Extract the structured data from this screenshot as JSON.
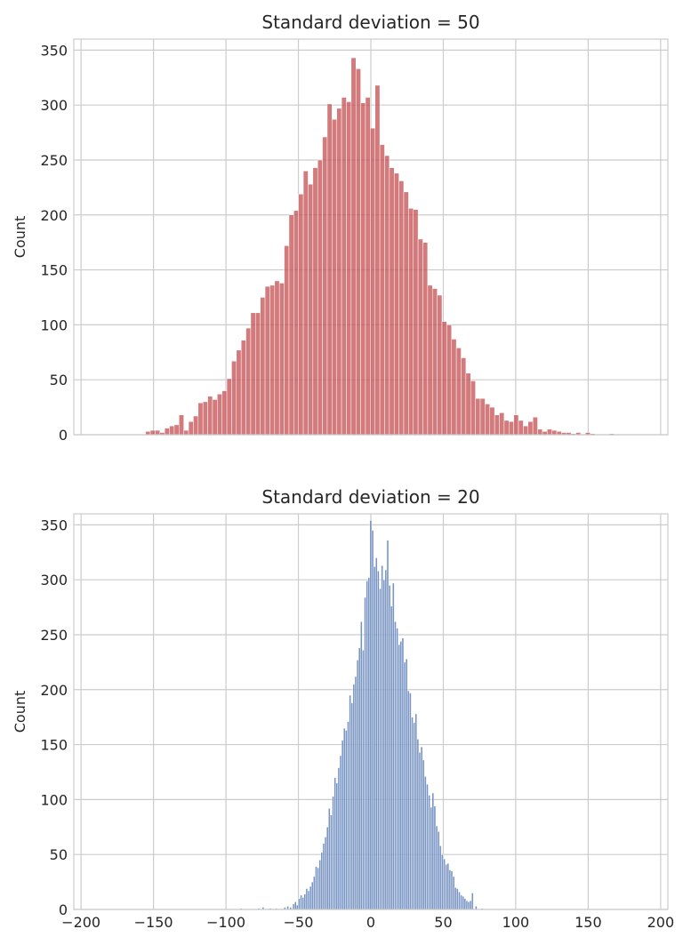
{
  "chart_data": [
    {
      "type": "bar",
      "histogram": true,
      "title": "Standard deviation = 50",
      "xlabel": "",
      "ylabel": "Count",
      "color": "#c44e52",
      "xlim": [
        -205,
        205
      ],
      "ylim": [
        0,
        360
      ],
      "xticks": [
        -200,
        -150,
        -100,
        -50,
        0,
        50,
        100,
        150,
        200
      ],
      "yticks": [
        0,
        50,
        100,
        150,
        200,
        250,
        300,
        350
      ],
      "show_x_tick_labels": false,
      "grid": true,
      "bin_width": 3.3,
      "bins": [
        [
          -155.5,
          3
        ],
        [
          -152.2,
          4
        ],
        [
          -148.9,
          4
        ],
        [
          -145.6,
          2
        ],
        [
          -142.3,
          6
        ],
        [
          -139.0,
          8
        ],
        [
          -135.7,
          9
        ],
        [
          -132.4,
          18
        ],
        [
          -129.1,
          4
        ],
        [
          -125.8,
          12
        ],
        [
          -122.5,
          17
        ],
        [
          -119.2,
          29
        ],
        [
          -115.9,
          30
        ],
        [
          -112.6,
          35
        ],
        [
          -109.3,
          32
        ],
        [
          -106.0,
          37
        ],
        [
          -102.7,
          40
        ],
        [
          -99.4,
          51
        ],
        [
          -96.1,
          67
        ],
        [
          -92.8,
          77
        ],
        [
          -89.5,
          86
        ],
        [
          -86.2,
          97
        ],
        [
          -82.9,
          111
        ],
        [
          -79.6,
          111
        ],
        [
          -76.3,
          125
        ],
        [
          -73.0,
          135
        ],
        [
          -69.7,
          136
        ],
        [
          -66.4,
          140
        ],
        [
          -63.1,
          138
        ],
        [
          -59.8,
          172
        ],
        [
          -56.5,
          200
        ],
        [
          -53.2,
          204
        ],
        [
          -49.9,
          219
        ],
        [
          -46.6,
          240
        ],
        [
          -43.3,
          228
        ],
        [
          -40.0,
          243
        ],
        [
          -36.7,
          250
        ],
        [
          -33.4,
          271
        ],
        [
          -30.1,
          301
        ],
        [
          -26.8,
          287
        ],
        [
          -23.5,
          297
        ],
        [
          -20.2,
          307
        ],
        [
          -16.9,
          303
        ],
        [
          -13.6,
          343
        ],
        [
          -10.3,
          333
        ],
        [
          -7.0,
          302
        ],
        [
          -3.7,
          307
        ],
        [
          -0.4,
          279
        ],
        [
          2.9,
          318
        ],
        [
          6.2,
          264
        ],
        [
          9.5,
          254
        ],
        [
          12.8,
          243
        ],
        [
          16.1,
          238
        ],
        [
          19.4,
          231
        ],
        [
          22.7,
          221
        ],
        [
          26.0,
          206
        ],
        [
          29.3,
          205
        ],
        [
          32.6,
          178
        ],
        [
          35.9,
          175
        ],
        [
          39.2,
          136
        ],
        [
          42.5,
          133
        ],
        [
          45.8,
          127
        ],
        [
          49.1,
          103
        ],
        [
          52.4,
          100
        ],
        [
          55.7,
          87
        ],
        [
          59.0,
          79
        ],
        [
          62.3,
          70
        ],
        [
          65.6,
          56
        ],
        [
          68.9,
          49
        ],
        [
          72.2,
          33
        ],
        [
          75.5,
          33
        ],
        [
          78.8,
          28
        ],
        [
          82.1,
          25
        ],
        [
          85.4,
          18
        ],
        [
          88.7,
          20
        ],
        [
          92.0,
          13
        ],
        [
          95.3,
          12
        ],
        [
          98.6,
          18
        ],
        [
          101.9,
          13
        ],
        [
          105.2,
          8
        ],
        [
          108.5,
          12
        ],
        [
          111.8,
          16
        ],
        [
          115.1,
          5
        ],
        [
          118.4,
          3
        ],
        [
          121.7,
          5
        ],
        [
          125.0,
          4
        ],
        [
          128.3,
          3
        ],
        [
          131.6,
          2
        ],
        [
          134.9,
          2
        ],
        [
          138.2,
          1
        ],
        [
          141.5,
          2
        ],
        [
          148.1,
          2
        ],
        [
          151.4,
          1
        ],
        [
          164.6,
          1
        ]
      ]
    },
    {
      "type": "bar",
      "histogram": true,
      "title": "Standard deviation = 20",
      "xlabel": "",
      "ylabel": "Count",
      "color": "#4c72b0",
      "xlim": [
        -205,
        205
      ],
      "ylim": [
        0,
        360
      ],
      "xticks": [
        -200,
        -150,
        -100,
        -50,
        0,
        50,
        100,
        150,
        200
      ],
      "yticks": [
        0,
        50,
        100,
        150,
        200,
        250,
        300,
        350
      ],
      "show_x_tick_labels": true,
      "grid": true,
      "bin_width": 1.3,
      "bins": [
        [
          -90.0,
          1
        ],
        [
          -78.0,
          1
        ],
        [
          -75.0,
          2
        ],
        [
          -70.0,
          1
        ],
        [
          -66.0,
          1
        ],
        [
          -60.0,
          2
        ],
        [
          -58.0,
          3
        ],
        [
          -56.0,
          2
        ],
        [
          -54.0,
          5
        ],
        [
          -52.7,
          7
        ],
        [
          -51.4,
          4
        ],
        [
          -50.1,
          10
        ],
        [
          -48.8,
          13
        ],
        [
          -47.5,
          11
        ],
        [
          -46.2,
          14
        ],
        [
          -44.9,
          19
        ],
        [
          -43.6,
          17
        ],
        [
          -42.3,
          21
        ],
        [
          -41.0,
          25
        ],
        [
          -39.7,
          30
        ],
        [
          -38.4,
          39
        ],
        [
          -37.1,
          38
        ],
        [
          -35.8,
          45
        ],
        [
          -34.5,
          52
        ],
        [
          -33.2,
          60
        ],
        [
          -31.9,
          66
        ],
        [
          -30.6,
          75
        ],
        [
          -29.3,
          92
        ],
        [
          -28.0,
          86
        ],
        [
          -26.7,
          103
        ],
        [
          -25.4,
          120
        ],
        [
          -24.1,
          115
        ],
        [
          -22.8,
          129
        ],
        [
          -21.5,
          140
        ],
        [
          -20.2,
          154
        ],
        [
          -18.9,
          165
        ],
        [
          -17.6,
          163
        ],
        [
          -16.3,
          171
        ],
        [
          -15.0,
          195
        ],
        [
          -13.7,
          188
        ],
        [
          -12.4,
          205
        ],
        [
          -11.1,
          212
        ],
        [
          -9.8,
          227
        ],
        [
          -8.5,
          238
        ],
        [
          -7.2,
          262
        ],
        [
          -5.9,
          236
        ],
        [
          -4.6,
          284
        ],
        [
          -3.3,
          299
        ],
        [
          -2.0,
          302
        ],
        [
          -0.7,
          354
        ],
        [
          0.6,
          345
        ],
        [
          1.9,
          312
        ],
        [
          3.2,
          320
        ],
        [
          4.5,
          308
        ],
        [
          5.8,
          292
        ],
        [
          7.1,
          313
        ],
        [
          8.4,
          300
        ],
        [
          9.7,
          309
        ],
        [
          11.0,
          336
        ],
        [
          12.3,
          295
        ],
        [
          13.6,
          276
        ],
        [
          14.9,
          297
        ],
        [
          16.2,
          262
        ],
        [
          17.5,
          256
        ],
        [
          18.8,
          241
        ],
        [
          20.1,
          244
        ],
        [
          21.4,
          247
        ],
        [
          22.7,
          225
        ],
        [
          24.0,
          228
        ],
        [
          25.3,
          199
        ],
        [
          26.6,
          197
        ],
        [
          27.9,
          175
        ],
        [
          29.2,
          170
        ],
        [
          30.5,
          178
        ],
        [
          31.8,
          155
        ],
        [
          33.1,
          143
        ],
        [
          34.4,
          148
        ],
        [
          35.7,
          136
        ],
        [
          37.0,
          121
        ],
        [
          38.3,
          114
        ],
        [
          39.6,
          104
        ],
        [
          40.9,
          93
        ],
        [
          42.2,
          106
        ],
        [
          43.5,
          94
        ],
        [
          44.8,
          76
        ],
        [
          46.1,
          71
        ],
        [
          47.4,
          58
        ],
        [
          48.7,
          50
        ],
        [
          50.0,
          46
        ],
        [
          51.3,
          41
        ],
        [
          52.6,
          42
        ],
        [
          53.9,
          36
        ],
        [
          55.2,
          35
        ],
        [
          56.5,
          30
        ],
        [
          57.8,
          20
        ],
        [
          59.1,
          19
        ],
        [
          60.4,
          16
        ],
        [
          61.7,
          13
        ],
        [
          63.0,
          12
        ],
        [
          64.3,
          10
        ],
        [
          65.6,
          8
        ],
        [
          66.9,
          7
        ],
        [
          68.2,
          8
        ],
        [
          69.5,
          15
        ],
        [
          72.0,
          3
        ],
        [
          76.0,
          1
        ]
      ]
    }
  ]
}
